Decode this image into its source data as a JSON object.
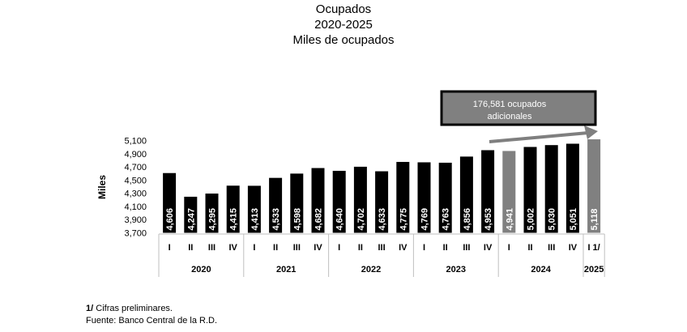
{
  "chart_data": {
    "type": "bar",
    "title": "Ocupados",
    "subtitle_1": "2020-2025",
    "subtitle_2": "Miles de ocupados",
    "ylabel": "Miles",
    "ylim": [
      3700,
      5100
    ],
    "yticks": [
      "5,100",
      "4,900",
      "4,700",
      "4,500",
      "4,300",
      "4,100",
      "3,900",
      "3,700"
    ],
    "ytick_values": [
      5100,
      4900,
      4700,
      4500,
      4300,
      4100,
      3900,
      3700
    ],
    "categories": [
      "I",
      "II",
      "III",
      "IV",
      "I",
      "II",
      "III",
      "IV",
      "I",
      "II",
      "III",
      "IV",
      "I",
      "II",
      "III",
      "IV",
      "I",
      "II",
      "III",
      "IV",
      "I 1/"
    ],
    "years": [
      {
        "label": "2020",
        "count": 4
      },
      {
        "label": "2021",
        "count": 4
      },
      {
        "label": "2022",
        "count": 4
      },
      {
        "label": "2023",
        "count": 4
      },
      {
        "label": "2024",
        "count": 4
      },
      {
        "label": "2025",
        "count": 1
      }
    ],
    "values": [
      4606,
      4247,
      4295,
      4415,
      4413,
      4533,
      4598,
      4682,
      4640,
      4702,
      4633,
      4775,
      4769,
      4763,
      4856,
      4953,
      4941,
      5002,
      5030,
      5051,
      5118
    ],
    "value_labels": [
      "4,606",
      "4,247",
      "4,295",
      "4,415",
      "4,413",
      "4,533",
      "4,598",
      "4,682",
      "4,640",
      "4,702",
      "4,633",
      "4,775",
      "4,769",
      "4,763",
      "4,856",
      "4,953",
      "4,941",
      "5,002",
      "5,030",
      "5,051",
      "5,118"
    ],
    "bar_colors": [
      "#000000",
      "#000000",
      "#000000",
      "#000000",
      "#000000",
      "#000000",
      "#000000",
      "#000000",
      "#000000",
      "#000000",
      "#000000",
      "#000000",
      "#000000",
      "#000000",
      "#000000",
      "#000000",
      "#808080",
      "#000000",
      "#000000",
      "#000000",
      "#808080"
    ],
    "annotation": {
      "line1": "176,581 ocupados",
      "line2": "adicionales"
    },
    "legend": "none",
    "grid": false
  },
  "footnotes": {
    "note_mark": "1/",
    "note_text": " Cifras preliminares.",
    "source": "Fuente: Banco Central de la R.D."
  }
}
